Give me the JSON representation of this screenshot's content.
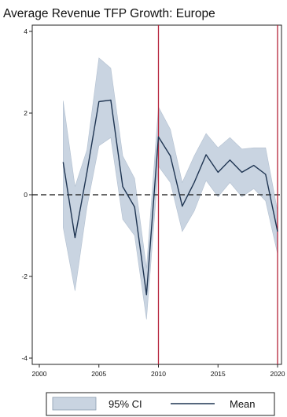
{
  "chart_data": {
    "type": "line",
    "title": "Average Revenue TFP Growth: Europe",
    "xlabel": "",
    "ylabel": "",
    "xlim": [
      2000,
      2020
    ],
    "ylim": [
      -4,
      4
    ],
    "x_ticks": [
      2000,
      2005,
      2010,
      2015,
      2020
    ],
    "x_tick_labels": [
      "2000",
      "2005",
      "2010",
      "2015",
      "2020"
    ],
    "y_ticks": [
      -4,
      -2,
      0,
      2,
      4
    ],
    "y_tick_labels": [
      "-4",
      "-2",
      "0",
      "2",
      "4"
    ],
    "grid": false,
    "reference_lines": {
      "horizontal_dashed_y": 0,
      "vertical_red_x": [
        2010,
        2020
      ],
      "vertical_color": "#b5233a"
    },
    "series": [
      {
        "name": "Mean",
        "color": "#1f3552",
        "x": [
          2002,
          2003,
          2004,
          2005,
          2006,
          2007,
          2008,
          2009,
          2010,
          2011,
          2012,
          2013,
          2014,
          2015,
          2016,
          2017,
          2018,
          2019,
          2020
        ],
        "y": [
          0.8,
          -1.05,
          0.55,
          2.28,
          2.32,
          0.2,
          -0.3,
          -2.45,
          1.42,
          0.95,
          -0.28,
          0.3,
          0.98,
          0.55,
          0.85,
          0.55,
          0.72,
          0.5,
          -0.9
        ]
      },
      {
        "name": "95% CI",
        "type": "band",
        "color": "#c9d4e1",
        "x": [
          2002,
          2003,
          2004,
          2005,
          2006,
          2007,
          2008,
          2009,
          2010,
          2011,
          2012,
          2013,
          2014,
          2015,
          2016,
          2017,
          2018,
          2019,
          2020
        ],
        "lower": [
          -0.8,
          -2.35,
          -0.3,
          1.2,
          1.4,
          -0.6,
          -1.0,
          -3.05,
          0.7,
          0.3,
          -0.9,
          -0.4,
          0.35,
          -0.05,
          0.3,
          -0.05,
          0.15,
          -0.15,
          -1.45
        ],
        "upper": [
          2.3,
          0.2,
          1.1,
          3.35,
          3.1,
          0.95,
          0.4,
          -1.8,
          2.15,
          1.6,
          0.3,
          0.95,
          1.5,
          1.15,
          1.4,
          1.12,
          1.15,
          1.15,
          -0.4
        ]
      }
    ],
    "legend": {
      "position": "bottom",
      "entries": [
        "95% CI",
        "Mean"
      ]
    }
  }
}
